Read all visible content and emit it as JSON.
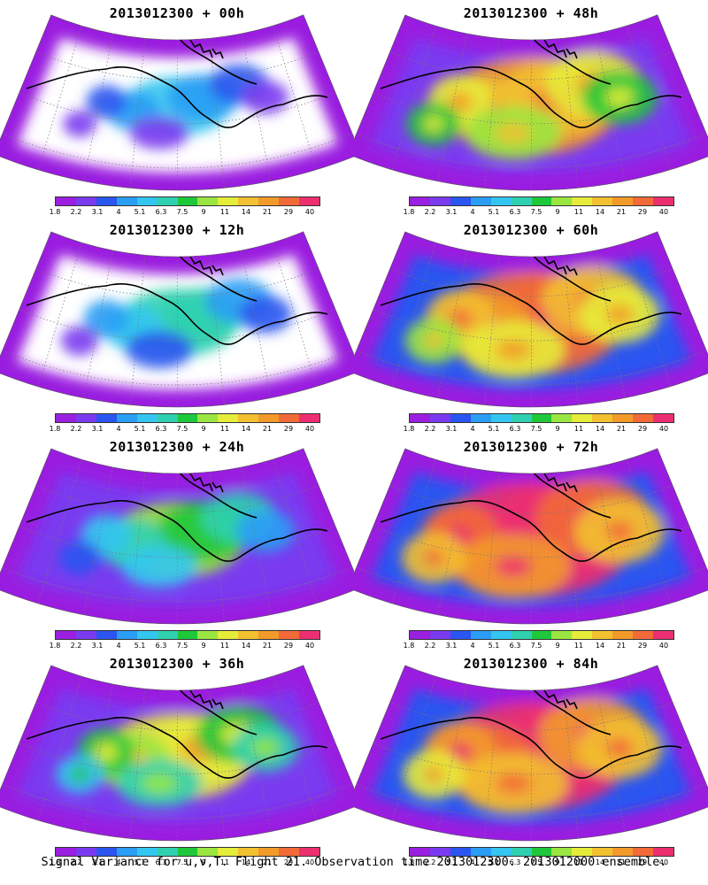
{
  "panels": [
    {
      "title": "2013012300 + 00h",
      "intensity": 0.15
    },
    {
      "title": "2013012300 + 48h",
      "intensity": 0.62
    },
    {
      "title": "2013012300 + 12h",
      "intensity": 0.25
    },
    {
      "title": "2013012300 + 60h",
      "intensity": 0.7
    },
    {
      "title": "2013012300 + 24h",
      "intensity": 0.35
    },
    {
      "title": "2013012300 + 72h",
      "intensity": 0.85
    },
    {
      "title": "2013012300 + 36h",
      "intensity": 0.48
    },
    {
      "title": "2013012300 + 84h",
      "intensity": 0.78
    }
  ],
  "colorbar": {
    "labels": [
      "1.8",
      "2.2",
      "3.1",
      "4",
      "5.1",
      "6.3",
      "7.5",
      "9",
      "11",
      "14",
      "21",
      "29",
      "40"
    ],
    "colors": [
      "#9a1fe0",
      "#7a3bf0",
      "#2a55f0",
      "#2a9df5",
      "#33c6f0",
      "#2fd0b0",
      "#1ec83a",
      "#9ae640",
      "#e6ec3a",
      "#f2c030",
      "#f29a2a",
      "#f26a38",
      "#ec2f70"
    ]
  },
  "caption": "Signal Variance for u,v,T. Flight 21. Observation time 2013012300. 2013012000 ensemble."
}
